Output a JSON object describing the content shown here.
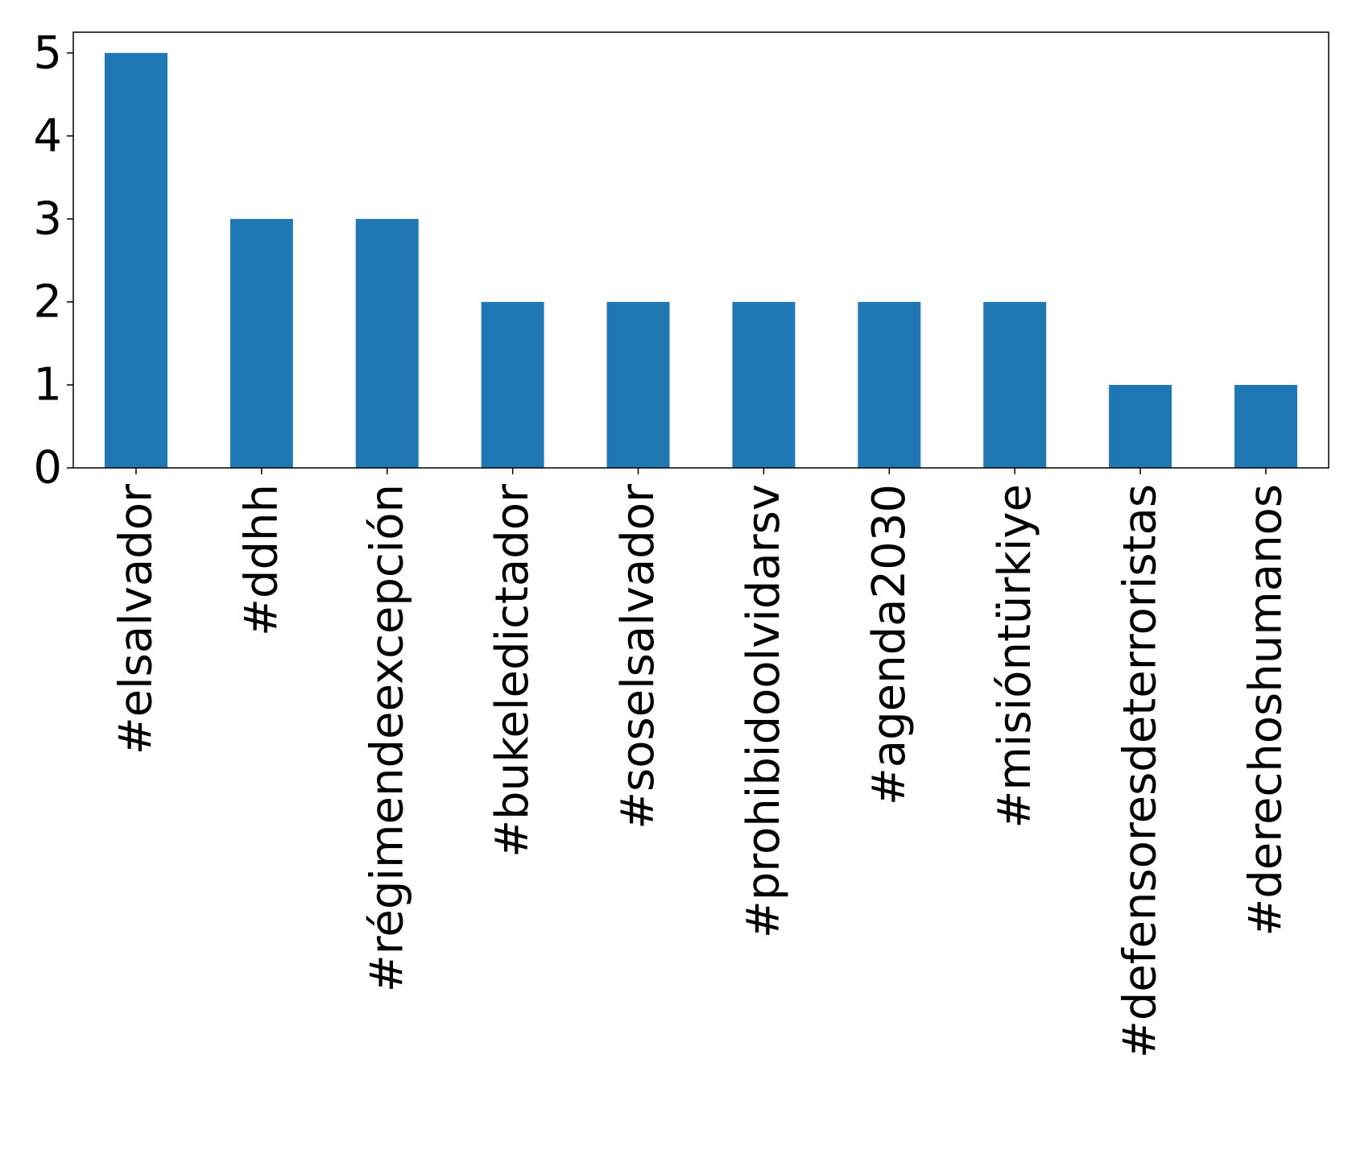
{
  "chart_data": {
    "type": "bar",
    "title": "",
    "xlabel": "",
    "ylabel": "",
    "categories": [
      "#elsalvador",
      "#ddhh",
      "#régimendeexcepción",
      "#bukeledictador",
      "#soselsalvador",
      "#prohibidoolvidarsv",
      "#agenda2030",
      "#misióntürkiye",
      "#defensoresdeterroristas",
      "#derechoshumanos"
    ],
    "values": [
      5,
      3,
      3,
      2,
      2,
      2,
      2,
      2,
      1,
      1
    ],
    "ylim": [
      0,
      5.25
    ],
    "yticks": [
      0,
      1,
      2,
      3,
      4,
      5
    ],
    "bar_color": "#1f77b4",
    "grid": false,
    "legend": "none"
  }
}
